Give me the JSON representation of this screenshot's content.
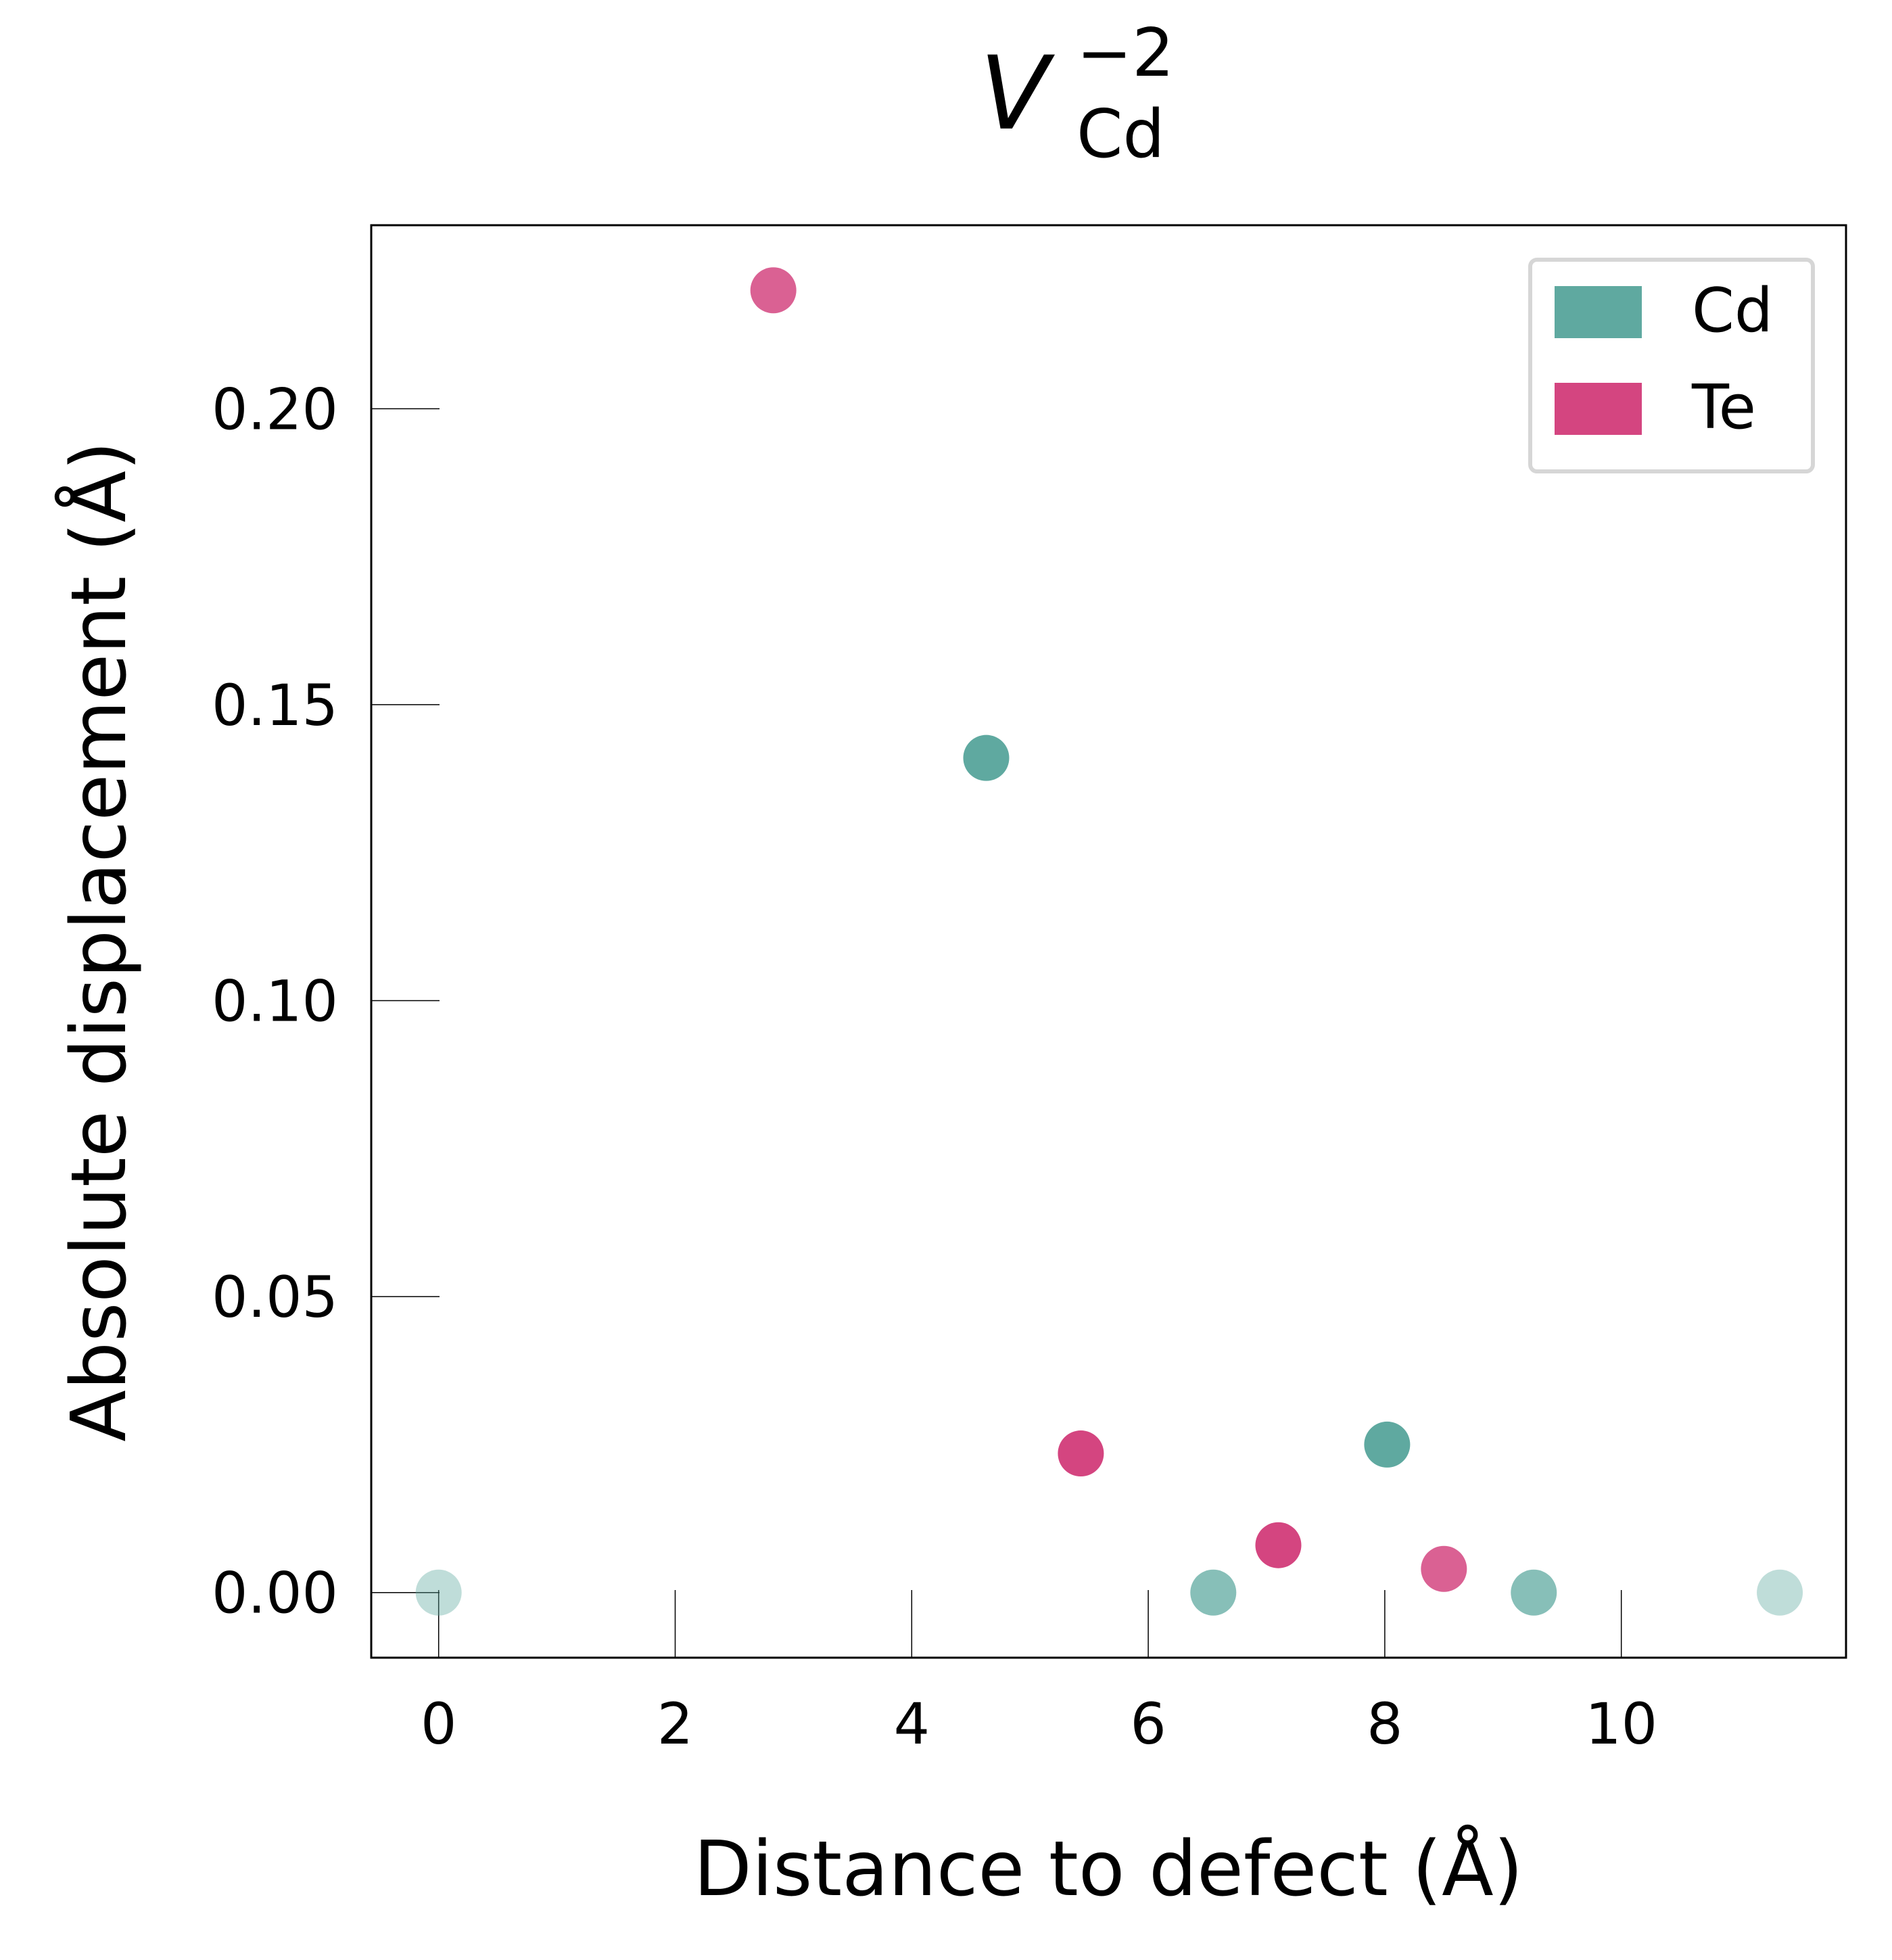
{
  "chart_data": {
    "type": "scatter",
    "title": {
      "base": "V",
      "subscript": "Cd",
      "superscript": "−2"
    },
    "xlabel": "Distance to defect (Å)",
    "ylabel": "Absolute displacement (Å)",
    "xlim": [
      -0.57,
      11.9
    ],
    "ylim": [
      -0.011,
      0.231
    ],
    "x_ticks": [
      0,
      2,
      4,
      6,
      8,
      10
    ],
    "x_tick_labels": [
      "0",
      "2",
      "4",
      "6",
      "8",
      "10"
    ],
    "y_ticks": [
      0.0,
      0.05,
      0.1,
      0.15,
      0.2
    ],
    "y_tick_labels": [
      "0.00",
      "0.05",
      "0.10",
      "0.15",
      "0.20"
    ],
    "grid": false,
    "legend_position": "top-right",
    "series": [
      {
        "name": "Cd",
        "color": "#5fa9a0",
        "points": [
          {
            "x": 0.0,
            "y": 0.0,
            "alpha": 0.4
          },
          {
            "x": 4.63,
            "y": 0.141,
            "alpha": 1.0
          },
          {
            "x": 6.55,
            "y": 0.0,
            "alpha": 0.75
          },
          {
            "x": 8.02,
            "y": 0.025,
            "alpha": 1.0
          },
          {
            "x": 9.26,
            "y": 0.0,
            "alpha": 0.75
          },
          {
            "x": 11.34,
            "y": 0.0,
            "alpha": 0.4
          }
        ]
      },
      {
        "name": "Te",
        "color": "#d44580",
        "points": [
          {
            "x": 2.83,
            "y": 0.22,
            "alpha": 0.85
          },
          {
            "x": 5.43,
            "y": 0.0235,
            "alpha": 1.0
          },
          {
            "x": 7.1,
            "y": 0.008,
            "alpha": 1.0
          },
          {
            "x": 8.5,
            "y": 0.004,
            "alpha": 0.85
          }
        ]
      }
    ]
  }
}
